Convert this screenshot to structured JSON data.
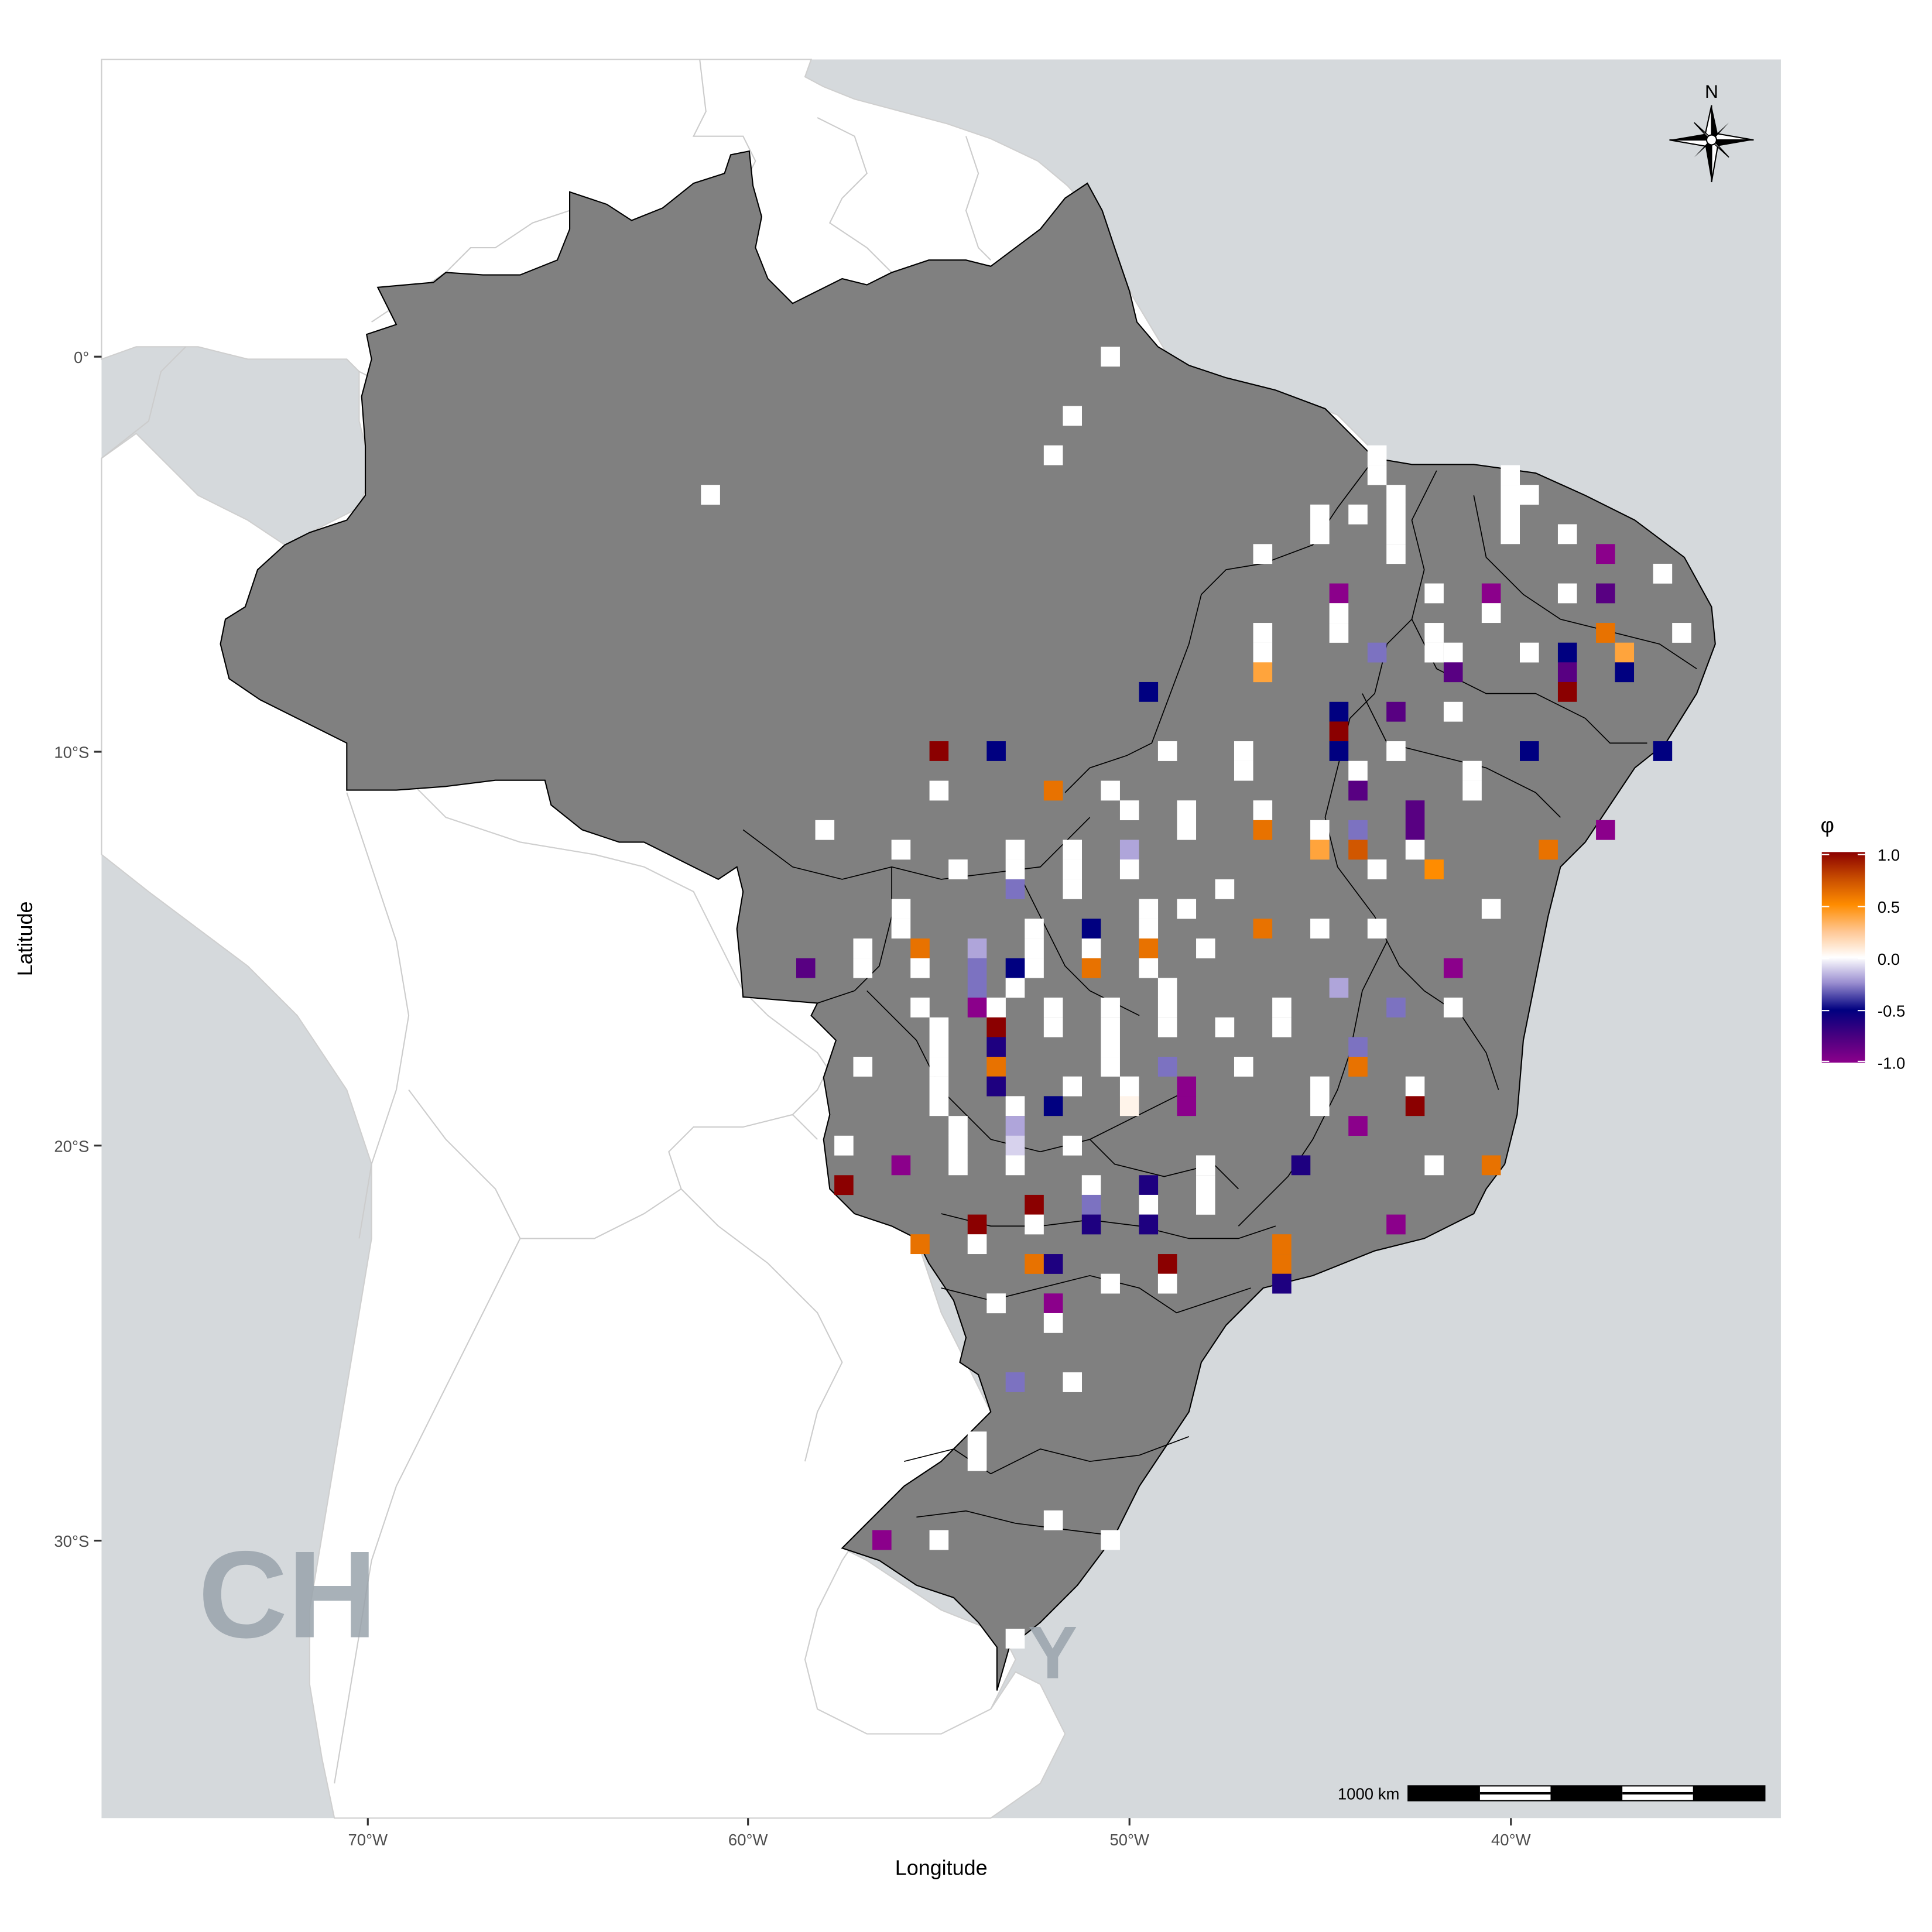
{
  "x_axis": {
    "title": "Longitude",
    "ticks": [
      "70°W",
      "60°W",
      "50°W",
      "40°W"
    ]
  },
  "y_axis": {
    "title": "Latitude",
    "ticks": [
      "0°",
      "10°S",
      "20°S",
      "30°S"
    ]
  },
  "legend": {
    "title": "φ",
    "ticks": [
      "1.0",
      "0.5",
      "0.0",
      "-0.5",
      "-1.0"
    ]
  },
  "north_arrow": {
    "label": "N"
  },
  "scale_bar": {
    "label": "1000 km"
  },
  "background_labels": [
    "CH",
    "Y"
  ],
  "colors": {
    "ocean": "#d5d9dc",
    "land": "#ffffff",
    "brazil": "#808080",
    "border": "#cccccc",
    "scale": {
      "-1.0": "#8b008b",
      "-0.5": "#000080",
      "0.0": "#ffffff",
      "0.5": "#ff8c00",
      "1.0": "#8b0000"
    }
  },
  "chart_data": {
    "type": "heatmap",
    "description_fields": "Gridded phi values at 1-degree cells; x = longitude (negative = W), y = latitude (negative = S)",
    "xlim": [
      -77.2,
      -33.6
    ],
    "ylim": [
      -36.5,
      7.5
    ],
    "color_range": [
      -1.0,
      1.0
    ],
    "cells": [
      {
        "x": -50.5,
        "y": 0.0,
        "v": 0.0
      },
      {
        "x": -51.5,
        "y": -1.5,
        "v": 0.0
      },
      {
        "x": -52.0,
        "y": -2.5,
        "v": 0.0
      },
      {
        "x": -61.0,
        "y": -3.5,
        "v": 0.0
      },
      {
        "x": -43.5,
        "y": -2.5,
        "v": 0.0
      },
      {
        "x": -43.5,
        "y": -3.0,
        "v": 0.0
      },
      {
        "x": -40.0,
        "y": -3.0,
        "v": 0.0
      },
      {
        "x": -40.0,
        "y": -3.5,
        "v": 0.0
      },
      {
        "x": -40.0,
        "y": -4.0,
        "v": 0.0
      },
      {
        "x": -40.0,
        "y": -4.5,
        "v": 0.0
      },
      {
        "x": -43.0,
        "y": -3.5,
        "v": 0.0
      },
      {
        "x": -43.0,
        "y": -4.0,
        "v": 0.0
      },
      {
        "x": -43.0,
        "y": -4.5,
        "v": 0.0
      },
      {
        "x": -43.0,
        "y": -5.0,
        "v": 0.0
      },
      {
        "x": -45.0,
        "y": -4.0,
        "v": 0.0
      },
      {
        "x": -45.0,
        "y": -4.5,
        "v": 0.0
      },
      {
        "x": -44.0,
        "y": -4.0,
        "v": 0.0
      },
      {
        "x": -46.5,
        "y": -5.0,
        "v": 0.0
      },
      {
        "x": -39.5,
        "y": -3.5,
        "v": 0.0
      },
      {
        "x": -38.5,
        "y": -4.5,
        "v": 0.0
      },
      {
        "x": -37.5,
        "y": -5.0,
        "v": -1.0
      },
      {
        "x": -36.0,
        "y": -5.5,
        "v": 0.0
      },
      {
        "x": -37.5,
        "y": -6.0,
        "v": -0.8
      },
      {
        "x": -38.5,
        "y": -6.0,
        "v": 0.0
      },
      {
        "x": -40.5,
        "y": -6.0,
        "v": -1.0
      },
      {
        "x": -40.5,
        "y": -6.5,
        "v": 0.0
      },
      {
        "x": -42.0,
        "y": -6.0,
        "v": 0.0
      },
      {
        "x": -44.5,
        "y": -6.0,
        "v": -1.0
      },
      {
        "x": -44.5,
        "y": -6.5,
        "v": 0.0
      },
      {
        "x": -44.5,
        "y": -7.0,
        "v": 0.0
      },
      {
        "x": -35.5,
        "y": -7.0,
        "v": 0.0
      },
      {
        "x": -37.5,
        "y": -7.0,
        "v": 0.6
      },
      {
        "x": -37.0,
        "y": -7.5,
        "v": 0.4
      },
      {
        "x": -38.5,
        "y": -7.5,
        "v": -0.5
      },
      {
        "x": -38.5,
        "y": -8.0,
        "v": -0.8
      },
      {
        "x": -38.5,
        "y": -8.5,
        "v": 1.0
      },
      {
        "x": -37.0,
        "y": -8.0,
        "v": -0.5
      },
      {
        "x": -39.5,
        "y": -7.5,
        "v": 0.0
      },
      {
        "x": -41.5,
        "y": -7.5,
        "v": 0.0
      },
      {
        "x": -41.5,
        "y": -8.0,
        "v": -0.8
      },
      {
        "x": -42.0,
        "y": -7.0,
        "v": 0.0
      },
      {
        "x": -42.0,
        "y": -7.5,
        "v": 0.0
      },
      {
        "x": -43.5,
        "y": -7.5,
        "v": -0.3
      },
      {
        "x": -46.5,
        "y": -7.0,
        "v": 0.0
      },
      {
        "x": -46.5,
        "y": -7.5,
        "v": 0.0
      },
      {
        "x": -46.5,
        "y": -8.0,
        "v": 0.4
      },
      {
        "x": -49.5,
        "y": -8.5,
        "v": -0.5
      },
      {
        "x": -41.5,
        "y": -9.0,
        "v": 0.0
      },
      {
        "x": -43.0,
        "y": -9.0,
        "v": -0.8
      },
      {
        "x": -44.5,
        "y": -9.0,
        "v": -0.5
      },
      {
        "x": -44.5,
        "y": -9.5,
        "v": 1.0
      },
      {
        "x": -44.5,
        "y": -10.0,
        "v": -0.5
      },
      {
        "x": -44.0,
        "y": -10.5,
        "v": 0.0
      },
      {
        "x": -44.0,
        "y": -11.0,
        "v": -0.8
      },
      {
        "x": -43.0,
        "y": -10.0,
        "v": 0.0
      },
      {
        "x": -39.5,
        "y": -10.0,
        "v": -0.5
      },
      {
        "x": -36.0,
        "y": -10.0,
        "v": -0.5
      },
      {
        "x": -55.0,
        "y": -10.0,
        "v": 1.0
      },
      {
        "x": -53.5,
        "y": -10.0,
        "v": -0.5
      },
      {
        "x": -49.0,
        "y": -10.0,
        "v": 0.0
      },
      {
        "x": -47.0,
        "y": -10.0,
        "v": 0.0
      },
      {
        "x": -47.0,
        "y": -10.5,
        "v": 0.0
      },
      {
        "x": -41.0,
        "y": -10.5,
        "v": 0.0
      },
      {
        "x": -41.0,
        "y": -11.0,
        "v": 0.0
      },
      {
        "x": -55.0,
        "y": -11.0,
        "v": 0.0
      },
      {
        "x": -52.0,
        "y": -11.0,
        "v": 0.6
      },
      {
        "x": -50.5,
        "y": -11.0,
        "v": 0.0
      },
      {
        "x": -50.0,
        "y": -11.5,
        "v": 0.0
      },
      {
        "x": -48.5,
        "y": -11.5,
        "v": 0.0
      },
      {
        "x": -48.5,
        "y": -12.0,
        "v": 0.0
      },
      {
        "x": -46.5,
        "y": -11.5,
        "v": 0.0
      },
      {
        "x": -46.5,
        "y": -12.0,
        "v": 0.6
      },
      {
        "x": -45.0,
        "y": -12.0,
        "v": 0.0
      },
      {
        "x": -45.0,
        "y": -12.5,
        "v": 0.4
      },
      {
        "x": -44.0,
        "y": -12.0,
        "v": -0.3
      },
      {
        "x": -44.0,
        "y": -12.5,
        "v": 0.7
      },
      {
        "x": -42.5,
        "y": -11.5,
        "v": -0.8
      },
      {
        "x": -42.5,
        "y": -12.0,
        "v": -0.8
      },
      {
        "x": -42.5,
        "y": -12.5,
        "v": 0.0
      },
      {
        "x": -42.0,
        "y": -13.0,
        "v": 0.5
      },
      {
        "x": -43.5,
        "y": -13.0,
        "v": 0.0
      },
      {
        "x": -39.0,
        "y": -12.5,
        "v": 0.6
      },
      {
        "x": -37.5,
        "y": -12.0,
        "v": -1.0
      },
      {
        "x": -58.0,
        "y": -12.0,
        "v": 0.0
      },
      {
        "x": -56.0,
        "y": -12.5,
        "v": 0.0
      },
      {
        "x": -54.5,
        "y": -13.0,
        "v": 0.0
      },
      {
        "x": -53.0,
        "y": -12.5,
        "v": 0.0
      },
      {
        "x": -53.0,
        "y": -13.0,
        "v": 0.0
      },
      {
        "x": -53.0,
        "y": -13.5,
        "v": -0.3
      },
      {
        "x": -51.5,
        "y": -12.5,
        "v": 0.0
      },
      {
        "x": -51.5,
        "y": -13.0,
        "v": 0.0
      },
      {
        "x": -51.5,
        "y": -13.5,
        "v": 0.0
      },
      {
        "x": -50.0,
        "y": -12.5,
        "v": -0.2
      },
      {
        "x": -50.0,
        "y": -13.0,
        "v": 0.0
      },
      {
        "x": -47.5,
        "y": -13.5,
        "v": 0.0
      },
      {
        "x": -48.5,
        "y": -14.0,
        "v": 0.0
      },
      {
        "x": -46.5,
        "y": -14.5,
        "v": 0.6
      },
      {
        "x": -45.0,
        "y": -14.5,
        "v": 0.0
      },
      {
        "x": -43.5,
        "y": -14.5,
        "v": 0.0
      },
      {
        "x": -40.5,
        "y": -14.0,
        "v": 0.0
      },
      {
        "x": -56.0,
        "y": -14.0,
        "v": 0.0
      },
      {
        "x": -56.0,
        "y": -14.5,
        "v": 0.0
      },
      {
        "x": -52.5,
        "y": -14.5,
        "v": 0.0
      },
      {
        "x": -52.5,
        "y": -15.0,
        "v": 0.0
      },
      {
        "x": -52.5,
        "y": -15.5,
        "v": 0.0
      },
      {
        "x": -51.0,
        "y": -14.5,
        "v": -0.5
      },
      {
        "x": -51.0,
        "y": -15.0,
        "v": 0.0
      },
      {
        "x": -51.0,
        "y": -15.5,
        "v": 0.6
      },
      {
        "x": -49.5,
        "y": -14.0,
        "v": 0.0
      },
      {
        "x": -49.5,
        "y": -14.5,
        "v": 0.0
      },
      {
        "x": -49.5,
        "y": -15.0,
        "v": 0.6
      },
      {
        "x": -49.5,
        "y": -15.5,
        "v": 0.0
      },
      {
        "x": -48.0,
        "y": -15.0,
        "v": 0.0
      },
      {
        "x": -58.5,
        "y": -15.5,
        "v": -0.8
      },
      {
        "x": -57.0,
        "y": -15.0,
        "v": 0.0
      },
      {
        "x": -57.0,
        "y": -15.5,
        "v": 0.0
      },
      {
        "x": -55.5,
        "y": -15.0,
        "v": 0.6
      },
      {
        "x": -55.5,
        "y": -15.5,
        "v": 0.0
      },
      {
        "x": -54.0,
        "y": -15.0,
        "v": -0.2
      },
      {
        "x": -54.0,
        "y": -15.5,
        "v": -0.3
      },
      {
        "x": -54.0,
        "y": -16.0,
        "v": -0.3
      },
      {
        "x": -54.0,
        "y": -16.5,
        "v": -1.0
      },
      {
        "x": -53.0,
        "y": -15.5,
        "v": -0.5
      },
      {
        "x": -53.0,
        "y": -16.0,
        "v": 0.0
      },
      {
        "x": -53.5,
        "y": -16.5,
        "v": 0.0
      },
      {
        "x": -53.5,
        "y": -17.0,
        "v": 1.0
      },
      {
        "x": -53.5,
        "y": -17.5,
        "v": -0.6
      },
      {
        "x": -53.5,
        "y": -18.0,
        "v": 0.6
      },
      {
        "x": -53.5,
        "y": -18.5,
        "v": -0.6
      },
      {
        "x": -55.5,
        "y": -16.5,
        "v": 0.0
      },
      {
        "x": -55.0,
        "y": -17.0,
        "v": 0.0
      },
      {
        "x": -55.0,
        "y": -17.5,
        "v": 0.0
      },
      {
        "x": -55.0,
        "y": -18.0,
        "v": 0.0
      },
      {
        "x": -55.0,
        "y": -18.5,
        "v": 0.0
      },
      {
        "x": -55.0,
        "y": -19.0,
        "v": 0.0
      },
      {
        "x": -52.0,
        "y": -16.5,
        "v": 0.0
      },
      {
        "x": -52.0,
        "y": -17.0,
        "v": 0.0
      },
      {
        "x": -50.5,
        "y": -16.5,
        "v": 0.0
      },
      {
        "x": -50.5,
        "y": -17.0,
        "v": 0.0
      },
      {
        "x": -50.5,
        "y": -17.5,
        "v": 0.0
      },
      {
        "x": -50.5,
        "y": -18.0,
        "v": 0.0
      },
      {
        "x": -49.0,
        "y": -16.0,
        "v": 0.0
      },
      {
        "x": -49.0,
        "y": -16.5,
        "v": 0.0
      },
      {
        "x": -49.0,
        "y": -17.0,
        "v": 0.0
      },
      {
        "x": -47.5,
        "y": -17.0,
        "v": 0.0
      },
      {
        "x": -46.0,
        "y": -16.5,
        "v": 0.0
      },
      {
        "x": -46.0,
        "y": -17.0,
        "v": 0.0
      },
      {
        "x": -44.5,
        "y": -16.0,
        "v": -0.2
      },
      {
        "x": -43.0,
        "y": -16.5,
        "v": -0.3
      },
      {
        "x": -44.0,
        "y": -17.5,
        "v": -0.3
      },
      {
        "x": -44.0,
        "y": -18.0,
        "v": 0.6
      },
      {
        "x": -41.5,
        "y": -15.5,
        "v": -1.0
      },
      {
        "x": -41.5,
        "y": -16.5,
        "v": 0.0
      },
      {
        "x": -59.5,
        "y": -18.0,
        "v": 0.0
      },
      {
        "x": -57.0,
        "y": -18.0,
        "v": 0.0
      },
      {
        "x": -51.5,
        "y": -18.5,
        "v": 0.0
      },
      {
        "x": -49.0,
        "y": -18.0,
        "v": -0.3
      },
      {
        "x": -47.0,
        "y": -18.0,
        "v": 0.0
      },
      {
        "x": -45.0,
        "y": -18.5,
        "v": 0.0
      },
      {
        "x": -45.0,
        "y": -19.0,
        "v": 0.0
      },
      {
        "x": -42.5,
        "y": -18.5,
        "v": 0.0
      },
      {
        "x": -42.5,
        "y": -19.0,
        "v": 1.0
      },
      {
        "x": -48.5,
        "y": -18.5,
        "v": -1.0
      },
      {
        "x": -48.5,
        "y": -19.0,
        "v": -1.0
      },
      {
        "x": -50.0,
        "y": -18.5,
        "v": 0.0
      },
      {
        "x": -50.0,
        "y": -19.0,
        "v": 0.05
      },
      {
        "x": -52.0,
        "y": -19.0,
        "v": -0.5
      },
      {
        "x": -53.0,
        "y": -19.0,
        "v": 0.0
      },
      {
        "x": -53.0,
        "y": -19.5,
        "v": -0.2
      },
      {
        "x": -53.0,
        "y": -20.0,
        "v": -0.1
      },
      {
        "x": -53.0,
        "y": -20.5,
        "v": 0.0
      },
      {
        "x": -54.5,
        "y": -19.5,
        "v": 0.0
      },
      {
        "x": -54.5,
        "y": -20.0,
        "v": 0.0
      },
      {
        "x": -54.5,
        "y": -20.5,
        "v": 0.0
      },
      {
        "x": -57.5,
        "y": -20.0,
        "v": 0.0
      },
      {
        "x": -56.0,
        "y": -20.5,
        "v": -1.0
      },
      {
        "x": -57.5,
        "y": -21.0,
        "v": 1.0
      },
      {
        "x": -51.5,
        "y": -20.0,
        "v": 0.0
      },
      {
        "x": -44.0,
        "y": -19.5,
        "v": -1.0
      },
      {
        "x": -45.5,
        "y": -20.5,
        "v": -0.6
      },
      {
        "x": -42.0,
        "y": -20.5,
        "v": 0.0
      },
      {
        "x": -40.5,
        "y": -20.5,
        "v": 0.6
      },
      {
        "x": -48.0,
        "y": -20.5,
        "v": 0.0
      },
      {
        "x": -48.0,
        "y": -21.0,
        "v": 0.0
      },
      {
        "x": -48.0,
        "y": -21.5,
        "v": 0.0
      },
      {
        "x": -51.0,
        "y": -21.0,
        "v": 0.0
      },
      {
        "x": -51.0,
        "y": -21.5,
        "v": -0.3
      },
      {
        "x": -51.0,
        "y": -22.0,
        "v": -0.6
      },
      {
        "x": -49.5,
        "y": -21.0,
        "v": -0.6
      },
      {
        "x": -49.5,
        "y": -21.5,
        "v": 0.0
      },
      {
        "x": -49.5,
        "y": -22.0,
        "v": -0.6
      },
      {
        "x": -52.5,
        "y": -21.5,
        "v": 1.0
      },
      {
        "x": -52.5,
        "y": -22.0,
        "v": 0.0
      },
      {
        "x": -54.0,
        "y": -22.0,
        "v": 1.0
      },
      {
        "x": -54.0,
        "y": -22.5,
        "v": 0.0
      },
      {
        "x": -55.5,
        "y": -22.5,
        "v": 0.6
      },
      {
        "x": -43.0,
        "y": -22.0,
        "v": -1.0
      },
      {
        "x": -46.0,
        "y": -22.5,
        "v": 0.6
      },
      {
        "x": -46.0,
        "y": -23.0,
        "v": 0.6
      },
      {
        "x": -46.0,
        "y": -23.5,
        "v": -0.6
      },
      {
        "x": -49.0,
        "y": -23.0,
        "v": 1.0
      },
      {
        "x": -49.0,
        "y": -23.5,
        "v": 0.0
      },
      {
        "x": -50.5,
        "y": -23.5,
        "v": 0.0
      },
      {
        "x": -52.5,
        "y": -23.0,
        "v": 0.6
      },
      {
        "x": -52.0,
        "y": -23.0,
        "v": -0.6
      },
      {
        "x": -52.0,
        "y": -24.0,
        "v": -1.0
      },
      {
        "x": -52.0,
        "y": -24.5,
        "v": 0.0
      },
      {
        "x": -53.5,
        "y": -24.0,
        "v": 0.0
      },
      {
        "x": -53.0,
        "y": -26.0,
        "v": -0.3
      },
      {
        "x": -51.5,
        "y": -26.0,
        "v": 0.0
      },
      {
        "x": -54.0,
        "y": -27.5,
        "v": 0.0
      },
      {
        "x": -54.0,
        "y": -28.0,
        "v": 0.0
      },
      {
        "x": -52.0,
        "y": -29.5,
        "v": 0.0
      },
      {
        "x": -56.5,
        "y": -30.0,
        "v": -1.0
      },
      {
        "x": -55.0,
        "y": -30.0,
        "v": 0.0
      },
      {
        "x": -50.5,
        "y": -30.0,
        "v": 0.0
      },
      {
        "x": -53.0,
        "y": -32.5,
        "v": 0.0
      }
    ]
  }
}
